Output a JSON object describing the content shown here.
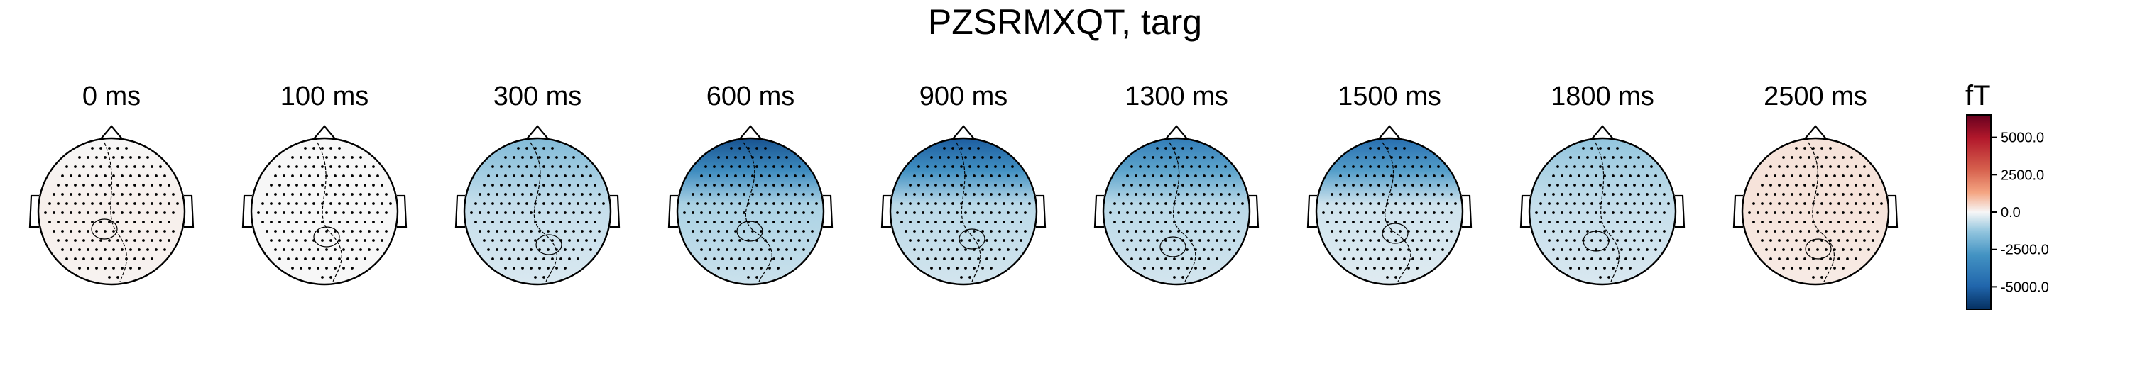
{
  "title": "PZSRMXQT, targ",
  "chart_data": {
    "type": "heatmap",
    "title": "PZSRMXQT, targ",
    "panels": [
      {
        "label": "0 ms",
        "level": 0.02,
        "front": 0.0
      },
      {
        "label": "100 ms",
        "level": 0.0,
        "front": 0.0
      },
      {
        "label": "300 ms",
        "level": -0.1,
        "front": -0.25
      },
      {
        "label": "600 ms",
        "level": -0.15,
        "front": -0.85
      },
      {
        "label": "900 ms",
        "level": -0.12,
        "front": -0.8
      },
      {
        "label": "1300 ms",
        "level": -0.12,
        "front": -0.6
      },
      {
        "label": "1500 ms",
        "level": -0.08,
        "front": -0.7
      },
      {
        "label": "1800 ms",
        "level": -0.1,
        "front": -0.2
      },
      {
        "label": "2500 ms",
        "level": 0.05,
        "front": 0.05
      }
    ],
    "colorbar": {
      "unit": "fT",
      "range": [
        -6500,
        6500
      ],
      "ticks": [
        5000.0,
        2500.0,
        0.0,
        -2500.0,
        -5000.0
      ],
      "tick_labels": [
        "5000.0",
        "2500.0",
        "0.0",
        "-2500.0",
        "-5000.0"
      ],
      "colormap": "RdBu_r"
    }
  }
}
